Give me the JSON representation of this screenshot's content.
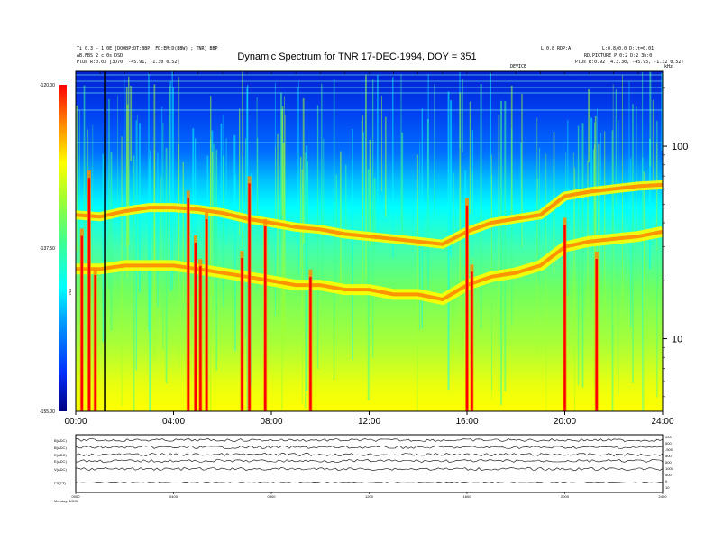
{
  "chart_data": {
    "type": "heatmap",
    "title": "Dynamic Spectrum for TNR 17-DEC-1994, DOY = 351",
    "header_left": [
      "Ti 0.3 - 1.0E [DOOBP:DT:BBP, FD:EM:D(BBW) ; TNR] BBP",
      "AB.FBS 2 c.0s DSD",
      "Plus   R:0.03 [3D70, -45.91, -1.30 0.52]"
    ],
    "header_right": [
      "L:0.8 RDP:A",
      "L:0.8/0.0 D:1t=0.01",
      "RD.PICTURE P:0:2 D:2 3h:0",
      "Plus   R:0.92 (4.3.30, -45.95, -1.32 0.52)"
    ],
    "mid_label": "DEVICE",
    "unit_label": "kHz",
    "colorbar_label": "TNR",
    "colorbar_ticks": [
      "-120.00",
      "-137.50",
      "-155.00"
    ],
    "x_ticks": [
      "00:00",
      "04:00",
      "08:00",
      "12:00",
      "16:00",
      "20:00",
      "24:00"
    ],
    "y_ticks": [
      "100",
      "10"
    ],
    "y_scale": "log",
    "ylim_khz": [
      4.2,
      245
    ],
    "xlim_hours": [
      0,
      24
    ],
    "colormap": [
      "#000080",
      "#0030ff",
      "#00a0ff",
      "#00ffff",
      "#40ff90",
      "#a0ff30",
      "#ffff00",
      "#ff8800",
      "#ff0000"
    ],
    "features": {
      "upper_band_khz": [
        {
          "t": 0.0,
          "f": 44
        },
        {
          "t": 1.0,
          "f": 43
        },
        {
          "t": 2.0,
          "f": 46
        },
        {
          "t": 3.0,
          "f": 48
        },
        {
          "t": 4.0,
          "f": 48
        },
        {
          "t": 5.0,
          "f": 47
        },
        {
          "t": 6.0,
          "f": 45
        },
        {
          "t": 7.0,
          "f": 42
        },
        {
          "t": 8.0,
          "f": 40
        },
        {
          "t": 9.0,
          "f": 38
        },
        {
          "t": 10.0,
          "f": 37
        },
        {
          "t": 11.0,
          "f": 35
        },
        {
          "t": 12.0,
          "f": 34
        },
        {
          "t": 13.0,
          "f": 33
        },
        {
          "t": 14.0,
          "f": 32
        },
        {
          "t": 15.0,
          "f": 31
        },
        {
          "t": 16.0,
          "f": 36
        },
        {
          "t": 17.0,
          "f": 40
        },
        {
          "t": 18.0,
          "f": 42
        },
        {
          "t": 19.0,
          "f": 44
        },
        {
          "t": 20.0,
          "f": 55
        },
        {
          "t": 21.0,
          "f": 58
        },
        {
          "t": 22.0,
          "f": 60
        },
        {
          "t": 23.0,
          "f": 62
        },
        {
          "t": 24.0,
          "f": 63
        }
      ],
      "lower_band_khz": [
        {
          "t": 0.0,
          "f": 23
        },
        {
          "t": 1.0,
          "f": 23
        },
        {
          "t": 2.0,
          "f": 24
        },
        {
          "t": 3.0,
          "f": 24
        },
        {
          "t": 4.0,
          "f": 24
        },
        {
          "t": 5.0,
          "f": 23
        },
        {
          "t": 6.0,
          "f": 22
        },
        {
          "t": 7.0,
          "f": 21
        },
        {
          "t": 8.0,
          "f": 20
        },
        {
          "t": 9.0,
          "f": 19
        },
        {
          "t": 10.0,
          "f": 19
        },
        {
          "t": 11.0,
          "f": 18
        },
        {
          "t": 12.0,
          "f": 18
        },
        {
          "t": 13.0,
          "f": 17
        },
        {
          "t": 14.0,
          "f": 17
        },
        {
          "t": 15.0,
          "f": 16
        },
        {
          "t": 16.0,
          "f": 19
        },
        {
          "t": 17.0,
          "f": 21
        },
        {
          "t": 18.0,
          "f": 22
        },
        {
          "t": 19.0,
          "f": 24
        },
        {
          "t": 20.0,
          "f": 30
        },
        {
          "t": 21.0,
          "f": 32
        },
        {
          "t": 22.0,
          "f": 33
        },
        {
          "t": 23.0,
          "f": 34
        },
        {
          "t": 24.0,
          "f": 36
        }
      ],
      "red_bursts_hours": [
        0.25,
        0.55,
        0.8,
        4.6,
        4.9,
        5.1,
        5.35,
        6.8,
        7.1,
        7.75,
        9.6,
        16.0,
        16.2,
        20.0,
        21.3
      ],
      "vertical_marker_hour": 1.2
    },
    "bottom_panel": {
      "row_labels": [
        "B(ADC)",
        "B(ADC)",
        "E(ADC)",
        "E(ADC)",
        "V(ADC)",
        "PS(TT)"
      ],
      "right_ticks": [
        "500",
        "500",
        "-500",
        "500",
        "500",
        "1000",
        "500",
        "0",
        "10"
      ],
      "x_ticks": [
        "0000",
        "0400",
        "0800",
        "1200",
        "1600",
        "2000",
        "2400"
      ],
      "footer": "Monday, 4/8/96"
    }
  }
}
